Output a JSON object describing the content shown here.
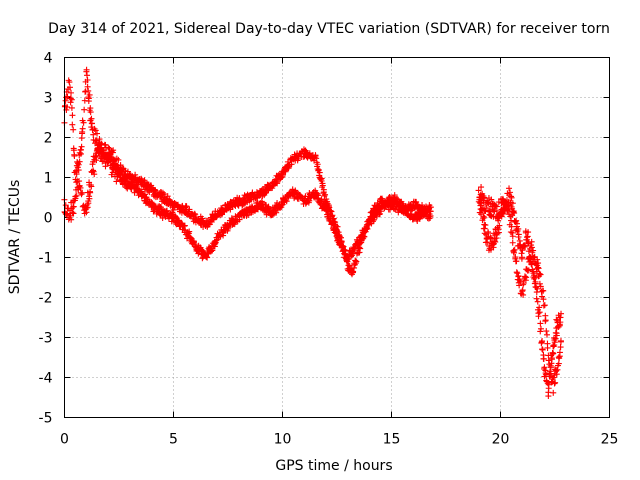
{
  "chart_data": {
    "type": "scatter",
    "title": "Day 314 of 2021, Sidereal Day-to-day VTEC variation (SDTVAR) for receiver torn",
    "xlabel": "GPS time / hours",
    "ylabel": "SDTVAR / TECUs",
    "xlim": [
      0,
      25
    ],
    "ylim": [
      -5,
      4
    ],
    "xticks": [
      "0",
      "5",
      "10",
      "15",
      "20",
      "25"
    ],
    "yticks": [
      "4",
      "3",
      "2",
      "1",
      "0",
      "-1",
      "-2",
      "-3",
      "-4",
      "-5"
    ],
    "grid": true,
    "marker": "+",
    "color": "#ff0000",
    "series": [
      {
        "name": "SDTVAR",
        "segments": [
          {
            "x_start": 0.0,
            "x_end": 16.8,
            "tracks": [
              {
                "x": [
                  0.0,
                  0.1,
                  0.2,
                  0.3,
                  0.4,
                  0.5,
                  0.7,
                  0.9,
                  1.0,
                  1.1,
                  1.2,
                  1.4,
                  1.6,
                  1.8,
                  2.0,
                  2.3,
                  2.6,
                  3.0,
                  3.5,
                  4.0,
                  4.5,
                  5.0,
                  5.5,
                  6.0,
                  6.5,
                  7.0,
                  7.5,
                  8.0,
                  8.5,
                  9.0,
                  9.5,
                  10.0,
                  10.5,
                  11.0,
                  11.5,
                  12.0,
                  12.5,
                  13.0,
                  13.2,
                  13.5,
                  14.0,
                  14.5,
                  15.0,
                  15.5,
                  16.0,
                  16.5,
                  16.8
                ],
                "y": [
                  2.5,
                  3.0,
                  3.3,
                  3.1,
                  2.0,
                  1.0,
                  1.5,
                  2.6,
                  3.5,
                  3.2,
                  2.4,
                  2.0,
                  1.7,
                  1.5,
                  1.6,
                  1.4,
                  1.2,
                  1.0,
                  0.9,
                  0.7,
                  0.5,
                  0.3,
                  0.2,
                  0.0,
                  -0.2,
                  0.1,
                  0.3,
                  0.4,
                  0.5,
                  0.6,
                  0.8,
                  1.1,
                  1.5,
                  1.6,
                  1.5,
                  0.4,
                  -0.3,
                  -1.2,
                  -1.4,
                  -0.8,
                  0.0,
                  0.4,
                  0.3,
                  0.2,
                  0.3,
                  0.2,
                  0.2
                ]
              },
              {
                "x": [
                  0.0,
                  0.2,
                  0.4,
                  0.6,
                  0.8,
                  1.0,
                  1.3,
                  1.6,
                  2.0,
                  2.5,
                  3.0,
                  3.5,
                  4.0,
                  4.5,
                  5.0,
                  5.5,
                  6.0,
                  6.5,
                  7.0,
                  7.5,
                  8.0,
                  8.5,
                  9.0,
                  9.5,
                  10.0,
                  10.5,
                  11.0,
                  11.5,
                  12.0,
                  12.5,
                  13.0,
                  13.5,
                  14.0,
                  14.5,
                  15.0,
                  15.5,
                  16.0,
                  16.5,
                  16.8
                ],
                "y": [
                  0.2,
                  0.1,
                  0.3,
                  0.8,
                  0.5,
                  0.2,
                  1.2,
                  1.8,
                  1.5,
                  1.0,
                  0.8,
                  0.6,
                  0.3,
                  0.1,
                  0.0,
                  -0.3,
                  -0.7,
                  -1.0,
                  -0.5,
                  -0.2,
                  0.0,
                  0.2,
                  0.3,
                  0.1,
                  0.4,
                  0.6,
                  0.4,
                  0.6,
                  0.2,
                  -0.5,
                  -1.0,
                  -0.6,
                  -0.1,
                  0.2,
                  0.5,
                  0.3,
                  0.0,
                  0.1,
                  0.0
                ]
              }
            ]
          },
          {
            "x_start": 19.0,
            "x_end": 22.8,
            "tracks": [
              {
                "x": [
                  19.0,
                  19.3,
                  19.6,
                  19.9,
                  20.2,
                  20.4,
                  20.6,
                  20.8,
                  21.0,
                  21.2,
                  21.4,
                  21.6,
                  21.8,
                  22.0,
                  22.2,
                  22.4,
                  22.6,
                  22.8
                ],
                "y": [
                  0.4,
                  -0.3,
                  -0.8,
                  -0.2,
                  0.3,
                  0.1,
                  -0.7,
                  -1.5,
                  -2.0,
                  -1.3,
                  -0.8,
                  -1.0,
                  -1.4,
                  -2.2,
                  -3.5,
                  -4.2,
                  -3.8,
                  -3.0
                ]
              },
              {
                "x": [
                  19.0,
                  19.3,
                  19.6,
                  19.9,
                  20.2,
                  20.4,
                  20.6,
                  20.8,
                  21.0,
                  21.2,
                  21.4,
                  21.6,
                  21.8,
                  22.0,
                  22.2,
                  22.4,
                  22.6,
                  22.8
                ],
                "y": [
                  0.6,
                  0.3,
                  0.2,
                  0.1,
                  0.4,
                  0.5,
                  0.2,
                  -0.5,
                  -0.9,
                  -0.4,
                  -1.1,
                  -1.5,
                  -2.5,
                  -3.8,
                  -4.3,
                  -3.2,
                  -2.7,
                  -2.5
                ]
              }
            ]
          }
        ]
      }
    ]
  }
}
